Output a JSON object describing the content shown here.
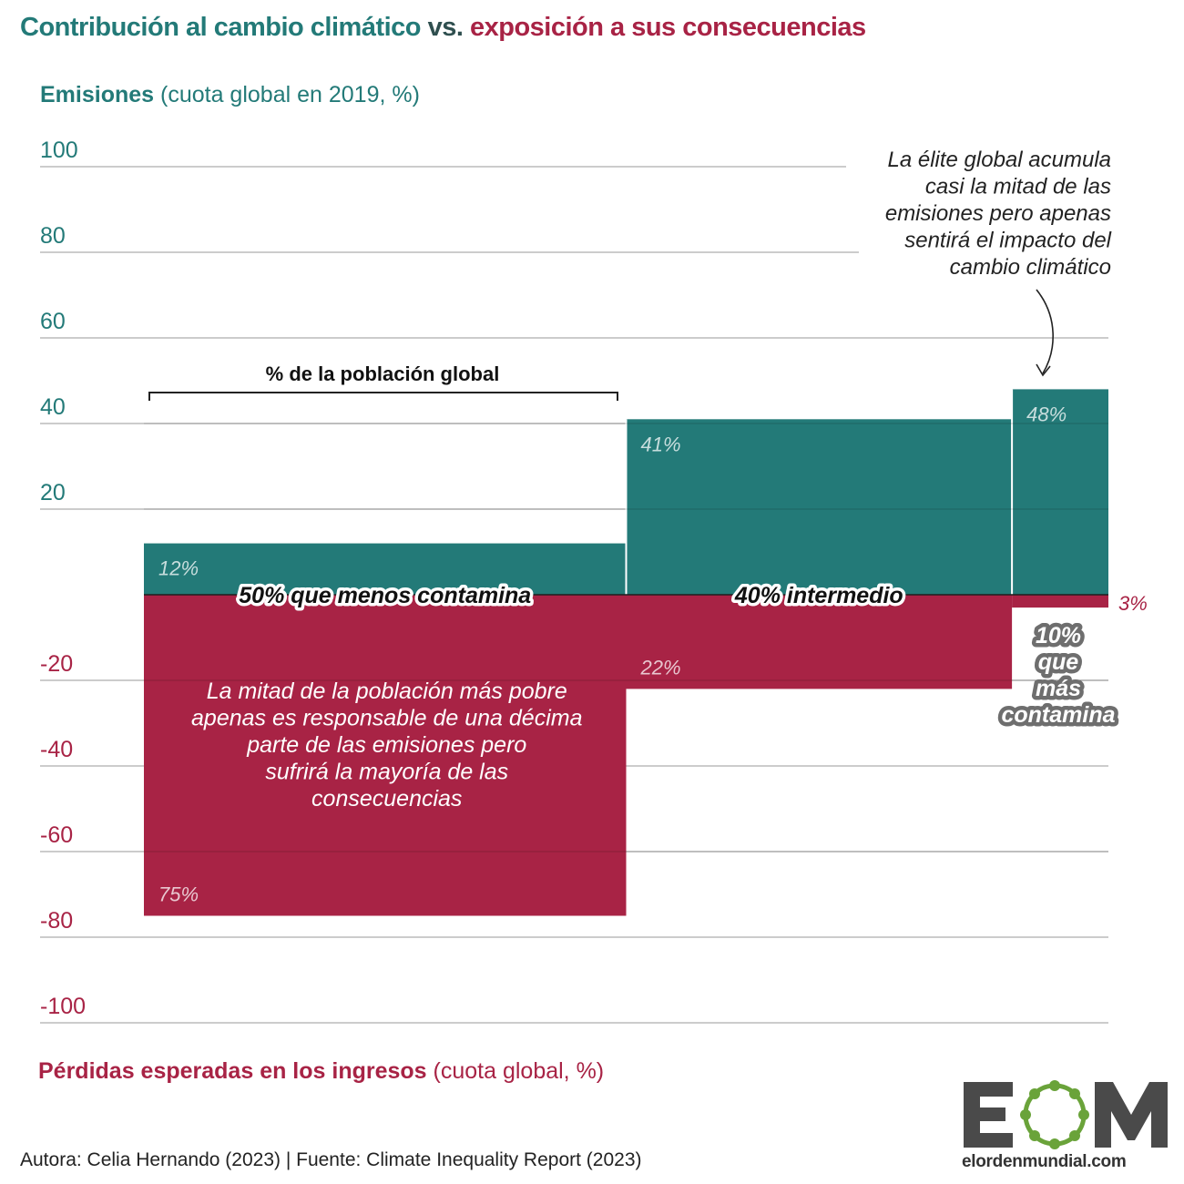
{
  "header": {
    "title_part1": "Contribución al cambio climático",
    "title_part2": "vs.",
    "title_part3": "exposición a sus consecuencias"
  },
  "axis_top_label": {
    "bold": "Emisiones",
    "rest": " (cuota global en 2019, %)"
  },
  "axis_bottom_label": {
    "bold": "Pérdidas esperadas en los ingresos",
    "rest": " (cuota global, %)"
  },
  "colors": {
    "emissions": "#237a78",
    "losses": "#a82345",
    "grid": "#999999",
    "elite_label_bg": "#6e6e6e"
  },
  "chart_data": {
    "type": "bar",
    "title": "Contribución al cambio climático vs. exposición a sus consecuencias",
    "ylim": [
      -100,
      100
    ],
    "yticks": [
      100,
      80,
      60,
      40,
      20,
      -20,
      -40,
      -60,
      -80,
      -100
    ],
    "grid": true,
    "population_bracket_label": "% de la población global",
    "groups": [
      {
        "label": "50% que menos contamina",
        "population_share": 50,
        "emissions": 12,
        "losses": 75,
        "emissions_label": "12%",
        "losses_label": "75%"
      },
      {
        "label": "40% intermedio",
        "population_share": 40,
        "emissions": 41,
        "losses": 22,
        "emissions_label": "41%",
        "losses_label": "22%"
      },
      {
        "label": "10% que más contamina",
        "label_lines": [
          "10%",
          "que",
          "más",
          "contamina"
        ],
        "population_share": 10,
        "emissions": 48,
        "losses": 3,
        "emissions_label": "48%",
        "losses_label": "3%"
      }
    ],
    "series": [
      {
        "name": "Emisiones",
        "values": [
          12,
          41,
          48
        ]
      },
      {
        "name": "Pérdidas esperadas en los ingresos",
        "values": [
          75,
          22,
          3
        ]
      }
    ],
    "annotations": {
      "elite": [
        "La élite global acumula",
        "casi la mitad de las",
        "emisiones pero apenas",
        "sentirá el impacto del",
        "cambio climático"
      ],
      "poor": [
        "La mitad de la población más pobre",
        "apenas es responsable de una décima",
        "parte de las emisiones pero",
        "sufrirá la mayoría de las",
        "consecuencias"
      ]
    }
  },
  "footer": {
    "credit": "Autora: Celia Hernando  (2023) | Fuente: Climate Inequality Report  (2023)"
  },
  "logo": {
    "letters": "EOM",
    "site": "elordenmundial.com"
  }
}
